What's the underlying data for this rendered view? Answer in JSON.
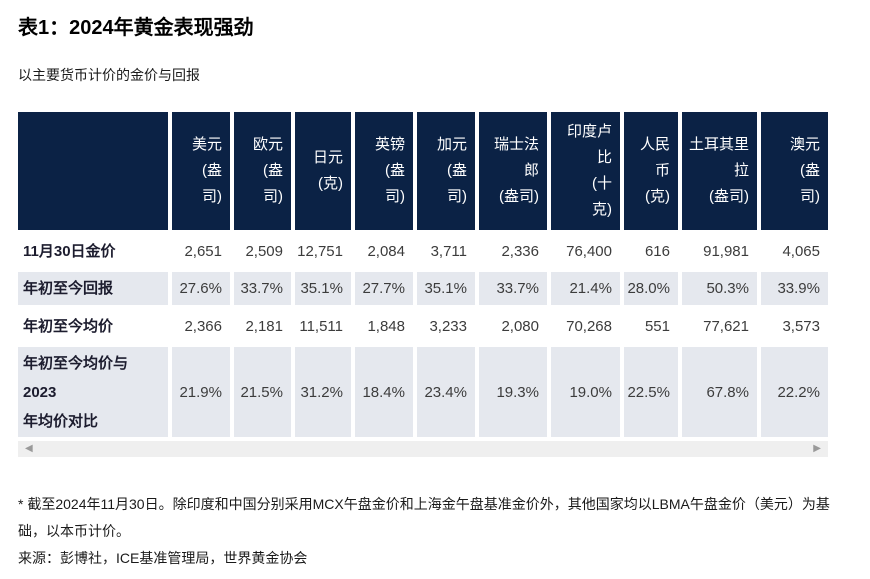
{
  "page": {
    "title": "表1：2024年黄金表现强劲",
    "subtitle": "以主要货币计价的金价与回报"
  },
  "table": {
    "header_row_label": "",
    "columns": [
      {
        "label": "美元\n(盎\n司)"
      },
      {
        "label": "欧元\n(盎\n司)"
      },
      {
        "label": "日元\n(克)"
      },
      {
        "label": "英镑\n(盎\n司)"
      },
      {
        "label": "加元\n(盎\n司)"
      },
      {
        "label": "瑞士法\n郎\n(盎司)"
      },
      {
        "label": "印度卢\n比\n(十\n克)"
      },
      {
        "label": "人民\n币\n(克)"
      },
      {
        "label": "土耳其里\n拉\n(盎司)"
      },
      {
        "label": "澳元\n(盎\n司)"
      }
    ],
    "rows": [
      {
        "label": "11月30日金价",
        "shaded": false,
        "values": [
          "2,651",
          "2,509",
          "12,751",
          "2,084",
          "3,711",
          "2,336",
          "76,400",
          "616",
          "91,981",
          "4,065"
        ]
      },
      {
        "label": "年初至今回报",
        "shaded": true,
        "values": [
          "27.6%",
          "33.7%",
          "35.1%",
          "27.7%",
          "35.1%",
          "33.7%",
          "21.4%",
          "28.0%",
          "50.3%",
          "33.9%"
        ]
      },
      {
        "label": "年初至今均价",
        "shaded": false,
        "values": [
          "2,366",
          "2,181",
          "11,511",
          "1,848",
          "3,233",
          "2,080",
          "70,268",
          "551",
          "77,621",
          "3,573"
        ]
      },
      {
        "label": "年初至今均价与\n2023\n年均价对比",
        "shaded": true,
        "values": [
          "21.9%",
          "21.5%",
          "31.2%",
          "18.4%",
          "23.4%",
          "19.3%",
          "19.0%",
          "22.5%",
          "67.8%",
          "22.2%"
        ]
      }
    ],
    "scrollbar": {
      "left_arrow": "◀",
      "right_arrow": "▶"
    }
  },
  "footer": {
    "note": "* 截至2024年11月30日。除印度和中国分别采用MCX午盘金价和上海金午盘基准金价外，其他国家均以LBMA午盘金价（美元）为基础，以本币计价。",
    "source": "来源：彭博社，ICE基准管理局，世界黄金协会"
  },
  "colors": {
    "header_bg": "#0b2245",
    "shaded_row_bg": "#e5e8ee",
    "scrollbar_track": "#efefef",
    "scrollbar_arrow": "#9a9a9a",
    "label_text": "#1c1c2e",
    "value_text": "#3c3c3c"
  }
}
